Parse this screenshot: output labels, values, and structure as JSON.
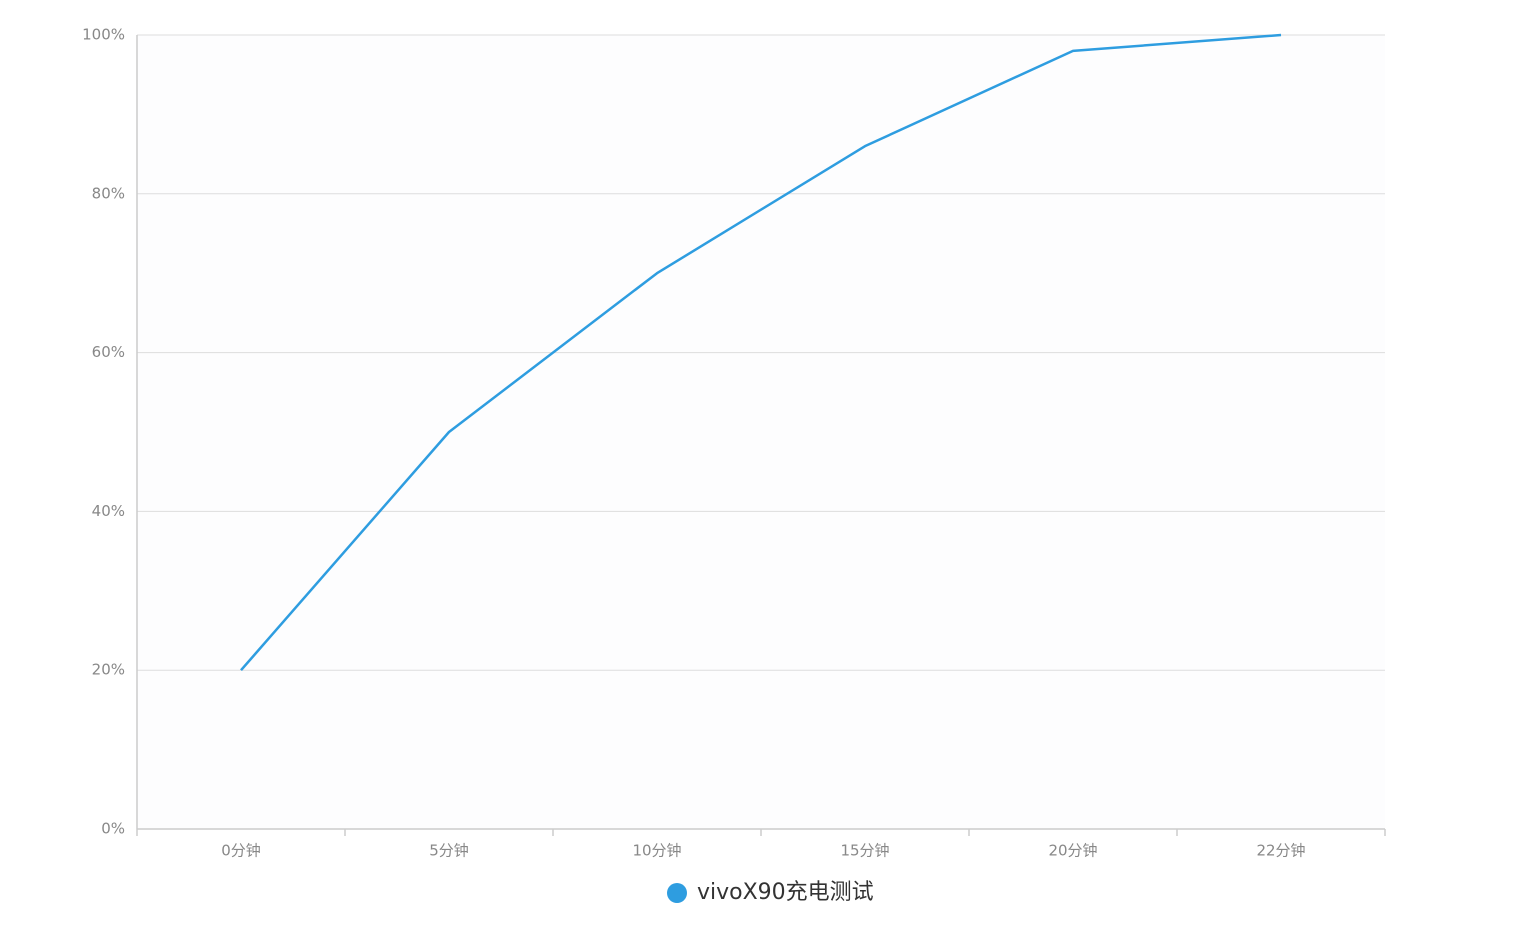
{
  "chart_data": {
    "type": "line",
    "categories": [
      "0分钟",
      "5分钟",
      "10分钟",
      "15分钟",
      "20分钟",
      "22分钟"
    ],
    "series": [
      {
        "name": "vivoX90充电测试",
        "color": "#2e9de0",
        "values": [
          20,
          50,
          70,
          86,
          98,
          100
        ]
      }
    ],
    "ylim": [
      0,
      100
    ],
    "yticks": [
      {
        "value": 0,
        "label": "0%"
      },
      {
        "value": 20,
        "label": "20%"
      },
      {
        "value": 40,
        "label": "40%"
      },
      {
        "value": 60,
        "label": "60%"
      },
      {
        "value": 80,
        "label": "80%"
      },
      {
        "value": 100,
        "label": "100%"
      }
    ],
    "grid": true,
    "legend": "bottom"
  }
}
